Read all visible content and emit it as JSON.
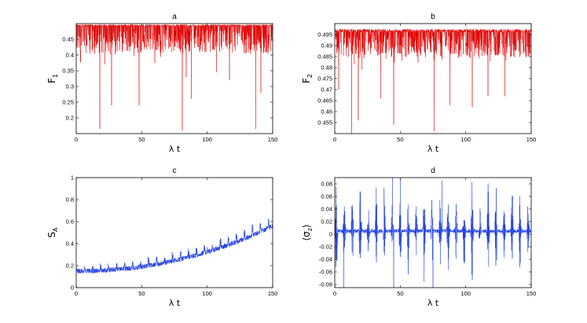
{
  "figure": {
    "background": "#ffffff"
  },
  "chart_data": [
    {
      "id": "a",
      "type": "line",
      "title": "a",
      "xlabel": "λ t",
      "ylabel_main": "F",
      "ylabel_sub": "1",
      "xlim": [
        0,
        150
      ],
      "ylim": [
        0.15,
        0.5
      ],
      "xticks": [
        0,
        50,
        100,
        150
      ],
      "yticks": [
        0.2,
        0.25,
        0.3,
        0.35,
        0.4,
        0.45
      ],
      "ytick_labels": [
        "0.2",
        "0.25",
        "0.3",
        "0.35",
        "0.4",
        "0.45"
      ],
      "color": "#e00000",
      "signal": {
        "kind": "dips",
        "baseline": 0.497,
        "noise": 0.006,
        "dip_rate": 3.4,
        "dip_depth_min": 0.01,
        "dip_depth_max": 0.09,
        "spike_period": 20.5,
        "spike_phase": 3.0,
        "seed": 11
      },
      "notable_points": [
        [
          18,
          0.165
        ],
        [
          22,
          0.37
        ],
        [
          27,
          0.24
        ],
        [
          48,
          0.24
        ],
        [
          60,
          0.375
        ],
        [
          81,
          0.16
        ],
        [
          84,
          0.33
        ],
        [
          88,
          0.26
        ],
        [
          107,
          0.345
        ],
        [
          117,
          0.32
        ],
        [
          137,
          0.165
        ],
        [
          141,
          0.28
        ]
      ]
    },
    {
      "id": "b",
      "type": "line",
      "title": "b",
      "xlabel": "λ t",
      "ylabel_main": "F",
      "ylabel_sub": "2",
      "xlim": [
        0,
        150
      ],
      "ylim": [
        0.45,
        0.5
      ],
      "xticks": [
        0,
        50,
        100,
        150
      ],
      "yticks": [
        0.455,
        0.46,
        0.465,
        0.47,
        0.475,
        0.48,
        0.485,
        0.49,
        0.495
      ],
      "ytick_labels": [
        "0.455",
        "0.46",
        "0.465",
        "0.47",
        "0.475",
        "0.48",
        "0.485",
        "0.49",
        "0.495"
      ],
      "color": "#e00000",
      "signal": {
        "kind": "dips",
        "baseline": 0.4975,
        "noise": 0.0015,
        "dip_rate": 3.0,
        "dip_depth_min": 0.002,
        "dip_depth_max": 0.012,
        "spike_period": 6.1,
        "spike_phase": 2.5,
        "seed": 23
      },
      "notable_points": [
        [
          3,
          0.47
        ],
        [
          13,
          0.45
        ],
        [
          18,
          0.456
        ],
        [
          35,
          0.466
        ],
        [
          45,
          0.454
        ],
        [
          76,
          0.451
        ],
        [
          88,
          0.463
        ],
        [
          105,
          0.462
        ],
        [
          117,
          0.467
        ],
        [
          130,
          0.467
        ]
      ]
    },
    {
      "id": "c",
      "type": "line",
      "title": "c",
      "xlabel": "λ t",
      "ylabel_main": "S",
      "ylabel_sub": "A",
      "xlim": [
        0,
        150
      ],
      "ylim": [
        0,
        1
      ],
      "xticks": [
        0,
        50,
        100,
        150
      ],
      "yticks": [
        0,
        0.2,
        0.4,
        0.6,
        0.8,
        1
      ],
      "ytick_labels": [
        "0",
        "0.2",
        "0.4",
        "0.6",
        "0.8",
        "1"
      ],
      "color": "#1f3fe0",
      "signal": {
        "kind": "trend",
        "start": 0.15,
        "end": 0.56,
        "power": 2.1,
        "noise": 0.045,
        "spike_period": 6.1,
        "spike_amp": 0.07,
        "seed": 37
      },
      "notable_points": [
        [
          0,
          0.15
        ],
        [
          50,
          0.2
        ],
        [
          100,
          0.37
        ],
        [
          150,
          0.56
        ]
      ]
    },
    {
      "id": "d",
      "type": "line",
      "title": "d",
      "xlabel": "λ t",
      "ylabel_main": "⟨σ",
      "ylabel_sub": "z",
      "ylabel_tail": "⟩",
      "xlim": [
        0,
        150
      ],
      "ylim": [
        -0.085,
        0.09
      ],
      "xticks": [
        0,
        50,
        100,
        150
      ],
      "yticks": [
        -0.08,
        -0.06,
        -0.04,
        -0.02,
        0,
        0.02,
        0.04,
        0.06,
        0.08
      ],
      "ytick_labels": [
        "-0.08",
        "-0.06",
        "-0.04",
        "-0.02",
        "0",
        "0.02",
        "0.04",
        "0.06",
        "0.08"
      ],
      "color": "#1f3fe0",
      "signal": {
        "kind": "bursts",
        "period": 6.1,
        "phase": 1.2,
        "width": 1.0,
        "amp_min": 0.045,
        "amp_max": 0.088,
        "baseline": 0.005,
        "noise": 0.006,
        "seed": 53
      },
      "notable_points": [
        [
          7,
          -0.085
        ],
        [
          44,
          0.09
        ],
        [
          45,
          -0.085
        ],
        [
          50,
          0.09
        ],
        [
          75,
          -0.085
        ],
        [
          82,
          0.085
        ]
      ]
    }
  ]
}
